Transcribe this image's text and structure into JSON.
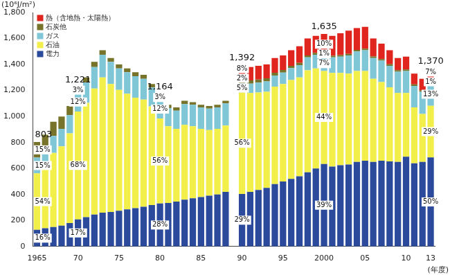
{
  "chart_data": {
    "type": "bar",
    "stacked": true,
    "y_label": "(10⁶J/m²)",
    "x_label": "(年度)",
    "grid": false,
    "legend": "upper left",
    "categories": [
      "1965",
      null,
      null,
      null,
      null,
      "70",
      null,
      null,
      null,
      null,
      "75",
      null,
      null,
      null,
      null,
      "80",
      null,
      null,
      null,
      null,
      "85",
      null,
      null,
      null,
      null,
      "90",
      null,
      null,
      null,
      null,
      "95",
      null,
      null,
      null,
      null,
      "2000",
      null,
      null,
      null,
      null,
      "05",
      null,
      null,
      null,
      null,
      "10",
      null,
      null,
      "13"
    ],
    "ylim": [
      0,
      1800
    ],
    "yticks": [
      0,
      200,
      400,
      600,
      800,
      {
        "value": 1000,
        "label": "1,000"
      },
      {
        "value": 1200,
        "label": "1,200"
      },
      {
        "value": 1400,
        "label": "1,400"
      },
      {
        "value": 1600,
        "label": "1,600"
      },
      {
        "value": 1800,
        "label": "1,800"
      }
    ],
    "series": [
      {
        "name": "電力",
        "color": "#2b4a9b",
        "values": [
          128,
          140,
          150,
          160,
          180,
          208,
          225,
          245,
          260,
          265,
          275,
          285,
          295,
          305,
          318,
          330,
          335,
          345,
          360,
          370,
          380,
          390,
          400,
          420,
          null,
          404,
          420,
          435,
          450,
          480,
          500,
          520,
          540,
          570,
          600,
          635,
          615,
          625,
          630,
          650,
          660,
          650,
          660,
          655,
          650,
          690,
          640,
          650,
          685
        ]
      },
      {
        "name": "石油",
        "color": "#f2ee4a",
        "values": [
          434,
          480,
          570,
          610,
          690,
          830,
          880,
          970,
          1040,
          985,
          930,
          890,
          850,
          825,
          760,
          655,
          590,
          560,
          575,
          555,
          525,
          505,
          505,
          510,
          null,
          780,
          760,
          750,
          740,
          750,
          750,
          760,
          760,
          785,
          770,
          715,
          720,
          710,
          700,
          700,
          690,
          640,
          605,
          570,
          530,
          490,
          430,
          370,
          397
        ]
      },
      {
        "name": "ガス",
        "color": "#7fc7d6",
        "values": [
          121,
          125,
          130,
          135,
          140,
          146,
          155,
          165,
          175,
          170,
          165,
          165,
          165,
          160,
          145,
          143,
          140,
          140,
          160,
          165,
          165,
          165,
          165,
          170,
          null,
          70,
          72,
          75,
          80,
          85,
          88,
          92,
          95,
          100,
          105,
          113,
          120,
          125,
          140,
          150,
          160,
          160,
          165,
          165,
          165,
          170,
          165,
          170,
          178
        ]
      },
      {
        "name": "石炭他",
        "color": "#77732b",
        "values": [
          120,
          115,
          110,
          95,
          70,
          37,
          40,
          40,
          35,
          30,
          30,
          30,
          30,
          30,
          27,
          36,
          25,
          25,
          25,
          20,
          20,
          20,
          20,
          20,
          null,
          28,
          26,
          25,
          24,
          22,
          20,
          18,
          17,
          15,
          14,
          12,
          12,
          12,
          12,
          12,
          12,
          12,
          12,
          12,
          12,
          12,
          12,
          12,
          14
        ]
      },
      {
        "name": "熱（含地熱・太陽熱）",
        "color": "#e0241e",
        "values": [
          null,
          null,
          null,
          null,
          null,
          null,
          null,
          null,
          null,
          null,
          null,
          null,
          null,
          null,
          null,
          null,
          null,
          null,
          null,
          null,
          null,
          null,
          null,
          null,
          null,
          110,
          102,
          105,
          106,
          113,
          112,
          120,
          128,
          130,
          131,
          160,
          153,
          168,
          178,
          168,
          168,
          138,
          118,
          108,
          93,
          98,
          83,
          88,
          96
        ]
      }
    ],
    "annotations": [
      {
        "at": "1965",
        "text": "803"
      },
      {
        "at": "1965",
        "series": "電力",
        "text": "16%"
      },
      {
        "at": "1965",
        "series": "石油",
        "text": "54%"
      },
      {
        "at": "1965",
        "series": "ガス",
        "text": "15%"
      },
      {
        "at": "1965",
        "series": "石炭他",
        "text": "15%"
      },
      {
        "at": "70",
        "text": "1,221"
      },
      {
        "at": "70",
        "series": "電力",
        "text": "17%"
      },
      {
        "at": "70",
        "series": "石油",
        "text": "68%"
      },
      {
        "at": "70",
        "series": "ガス",
        "text": "12%"
      },
      {
        "at": "70",
        "series": "石炭他",
        "text": "3%"
      },
      {
        "at": "80",
        "text": "1,164"
      },
      {
        "at": "80",
        "series": "電力",
        "text": "28%"
      },
      {
        "at": "80",
        "series": "石油",
        "text": "56%"
      },
      {
        "at": "80",
        "series": "ガス",
        "text": "12%"
      },
      {
        "at": "80",
        "series": "石炭他",
        "text": "3%"
      },
      {
        "at": "90",
        "text": "1,392"
      },
      {
        "at": "90",
        "series": "電力",
        "text": "29%"
      },
      {
        "at": "90",
        "series": "石油",
        "text": "56%"
      },
      {
        "at": "90",
        "series": "ガス",
        "text": "5%"
      },
      {
        "at": "90",
        "series": "石炭他",
        "text": "2%"
      },
      {
        "at": "90",
        "series": "熱（含地熱・太陽熱）",
        "text": "8%"
      },
      {
        "at": "2000",
        "text": "1,635"
      },
      {
        "at": "2000",
        "series": "電力",
        "text": "39%"
      },
      {
        "at": "2000",
        "series": "石油",
        "text": "44%"
      },
      {
        "at": "2000",
        "series": "ガス",
        "text": "7%"
      },
      {
        "at": "2000",
        "series": "石炭他",
        "text": "1%"
      },
      {
        "at": "2000",
        "series": "熱（含地熱・太陽熱）",
        "text": "10%"
      },
      {
        "at": "13",
        "text": "1,370"
      },
      {
        "at": "13",
        "series": "電力",
        "text": "50%"
      },
      {
        "at": "13",
        "series": "石油",
        "text": "29%"
      },
      {
        "at": "13",
        "series": "ガス",
        "text": "13%"
      },
      {
        "at": "13",
        "series": "石炭他",
        "text": "1%"
      },
      {
        "at": "13",
        "series": "熱（含地熱・太陽熱）",
        "text": "7%"
      }
    ]
  }
}
